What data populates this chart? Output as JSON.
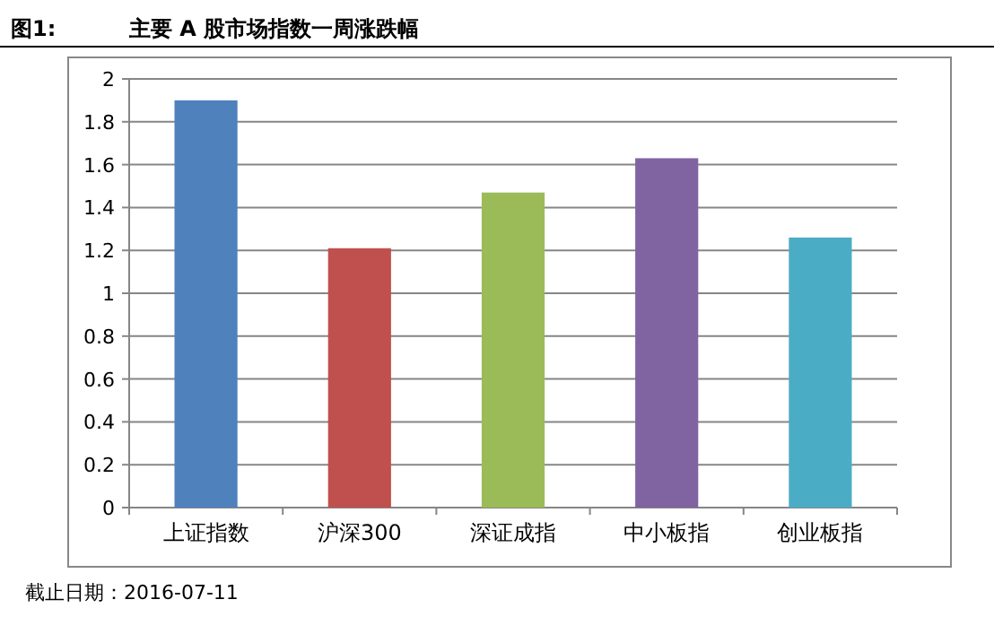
{
  "chart_data": {
    "type": "bar",
    "title": "主要 A 股市场指数一周涨跌幅",
    "annotations": [
      "图1:",
      "截止日期：2016-07-11"
    ],
    "categories": [
      "上证指数",
      "沪深300",
      "深证成指",
      "中小板指",
      "创业板指"
    ],
    "values": [
      1.9,
      1.21,
      1.47,
      1.63,
      1.26
    ],
    "colors": [
      "#4f81bd",
      "#c0504d",
      "#9bbb59",
      "#8064a2",
      "#4bacc6"
    ],
    "ylim": [
      0,
      2
    ],
    "yticks": [
      0,
      0.2,
      0.4,
      0.6,
      0.8,
      1,
      1.2,
      1.4,
      1.6,
      1.8,
      2
    ],
    "grid": "y"
  }
}
